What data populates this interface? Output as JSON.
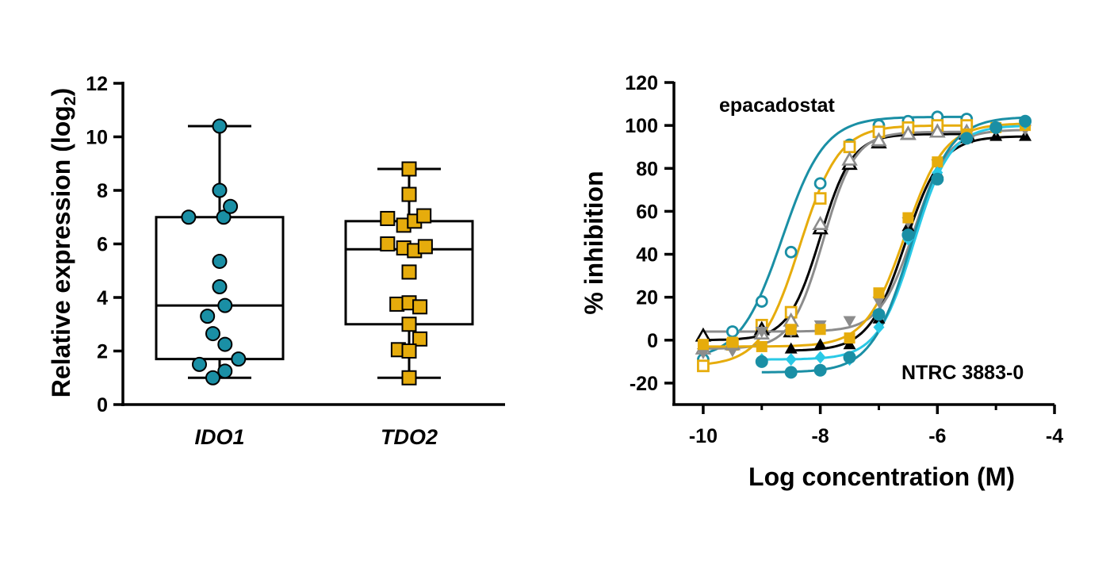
{
  "colors": {
    "teal": "#1a8fa5",
    "gold": "#e6ac0c",
    "black": "#000000",
    "gray": "#8c8c8c",
    "cyan": "#29c9e6"
  },
  "chart_data": [
    {
      "type": "box",
      "ylabel": "Relative expression (log",
      "ylabel_sub": "2",
      "ylabel_close": ")",
      "ylim": [
        0,
        12
      ],
      "yticks": [
        "0",
        "2",
        "4",
        "6",
        "8",
        "10",
        "12"
      ],
      "categories": [
        "IDO1",
        "TDO2"
      ],
      "grid": false,
      "boxes": [
        {
          "name": "IDO1",
          "marker": "circle",
          "color": "teal",
          "min": 1.0,
          "q1": 1.7,
          "median": 3.7,
          "q3": 7.0,
          "max": 10.4,
          "points": [
            10.4,
            8.0,
            7.0,
            7.0,
            7.4,
            5.35,
            4.4,
            3.7,
            3.3,
            2.65,
            2.25,
            1.7,
            1.5,
            1.25,
            1.0
          ]
        },
        {
          "name": "TDO2",
          "marker": "square",
          "color": "gold",
          "min": 1.0,
          "q1": 3.0,
          "median": 5.8,
          "q3": 6.85,
          "max": 8.8,
          "points": [
            8.8,
            7.85,
            6.95,
            6.7,
            6.85,
            7.05,
            6.0,
            5.85,
            5.75,
            5.9,
            4.95,
            3.75,
            3.8,
            3.65,
            3.0,
            2.45,
            2.05,
            2.0,
            1.0
          ]
        }
      ]
    },
    {
      "type": "line",
      "xlabel": "Log concentration (M)",
      "ylabel": "% inhibition",
      "xlim": [
        -10.5,
        -4
      ],
      "ylim": [
        -30,
        120
      ],
      "xticks": [
        "-10",
        "-8",
        "-6",
        "-4"
      ],
      "yticks": [
        "-20",
        "0",
        "20",
        "40",
        "60",
        "80",
        "100",
        "120"
      ],
      "grid": false,
      "annotations": [
        "epacadostat",
        "NTRC 3883-0"
      ],
      "series": [
        {
          "group": "epacadostat",
          "color": "teal",
          "marker": "circle-open",
          "x0": -10,
          "x1": -5.5,
          "bottom": -9,
          "top": 104,
          "logIC50": -8.65,
          "hill": 1.2,
          "x": [
            -10,
            -9.5,
            -9,
            -8.5,
            -8,
            -7.5,
            -7,
            -6.5,
            -6,
            -5.5
          ],
          "y": [
            -9,
            4,
            18,
            41,
            73,
            91,
            100,
            102,
            104,
            103
          ]
        },
        {
          "group": "epacadostat",
          "color": "gold",
          "marker": "square-open",
          "x0": -10,
          "x1": -5.5,
          "bottom": -12,
          "top": 100,
          "logIC50": -8.35,
          "hill": 1.3,
          "x": [
            -10,
            -9.5,
            -9,
            -8.5,
            -8,
            -7.5,
            -7,
            -6.5,
            -6,
            -5.5
          ],
          "y": [
            -12,
            -2,
            7,
            13,
            66,
            90,
            97,
            99,
            100,
            100
          ]
        },
        {
          "group": "epacadostat",
          "color": "black",
          "marker": "triangle-open",
          "x0": -10,
          "x1": -5.5,
          "bottom": 0,
          "top": 96,
          "logIC50": -8.0,
          "hill": 1.6,
          "x": [
            -10,
            -9,
            -8.5,
            -8,
            -7.5,
            -7,
            -6.5,
            -6,
            -5.5
          ],
          "y": [
            2,
            5,
            4,
            52,
            82,
            92,
            96,
            97,
            96
          ]
        },
        {
          "group": "epacadostat",
          "color": "gray",
          "marker": "triangle-open",
          "x0": -10,
          "x1": -5.5,
          "bottom": -4,
          "top": 97,
          "logIC50": -7.95,
          "hill": 1.6,
          "x": [
            -10,
            -9.5,
            -9,
            -8.5,
            -8,
            -7.5,
            -7,
            -6.5,
            -6,
            -5.5
          ],
          "y": [
            -4,
            -2,
            3,
            9,
            54,
            84,
            93,
            96,
            97,
            97
          ]
        },
        {
          "group": "NTRC 3883-0",
          "color": "black",
          "marker": "triangle",
          "x0": -8.5,
          "x1": -4.5,
          "bottom": -5,
          "top": 95,
          "logIC50": -6.55,
          "hill": 1.4,
          "x": [
            -8.5,
            -8,
            -7.5,
            -7,
            -6.5,
            -6,
            -5.5,
            -5,
            -4.5
          ],
          "y": [
            -4,
            -2,
            -2,
            10,
            53,
            78,
            94,
            95,
            95
          ]
        },
        {
          "group": "NTRC 3883-0",
          "color": "gray",
          "marker": "triangle-down",
          "x0": -10,
          "x1": -4.5,
          "bottom": 4,
          "top": 98,
          "logIC50": -6.4,
          "hill": 1.5,
          "x": [
            -10,
            -9.5,
            -9,
            -8.5,
            -8,
            -7.5,
            -7,
            -6.5,
            -6,
            -5.5,
            -5,
            -4.5
          ],
          "y": [
            -6,
            -5,
            4,
            4,
            7,
            9,
            18,
            55,
            82,
            95,
            98,
            98
          ]
        },
        {
          "group": "NTRC 3883-0",
          "color": "gold",
          "marker": "square",
          "x0": -10,
          "x1": -4.5,
          "bottom": -3,
          "top": 101,
          "logIC50": -6.55,
          "hill": 1.3,
          "x": [
            -10,
            -9.5,
            -9,
            -8.5,
            -8,
            -7.5,
            -7,
            -6.5,
            -6,
            -5.5,
            -5,
            -4.5
          ],
          "y": [
            -2,
            -1,
            -3,
            5,
            5,
            1,
            22,
            57,
            83,
            96,
            99,
            100
          ]
        },
        {
          "group": "NTRC 3883-0",
          "color": "cyan",
          "marker": "diamond",
          "x0": -9,
          "x1": -4.5,
          "bottom": -9,
          "top": 100,
          "logIC50": -6.4,
          "hill": 1.4,
          "x": [
            -9,
            -8.5,
            -8,
            -7.5,
            -7,
            -6.5,
            -6,
            -5.5,
            -5,
            -4.5
          ],
          "y": [
            -9,
            -9,
            -8,
            -9,
            6,
            47,
            78,
            94,
            99,
            101
          ]
        },
        {
          "group": "NTRC 3883-0",
          "color": "teal",
          "marker": "circle",
          "x0": -9,
          "x1": -4.5,
          "bottom": -15,
          "top": 104,
          "logIC50": -6.45,
          "hill": 1.3,
          "x": [
            -9,
            -8.5,
            -8,
            -7.5,
            -7,
            -6.5,
            -6,
            -5.5,
            -5,
            -4.5
          ],
          "y": [
            -10,
            -15,
            -14,
            -8,
            12,
            49,
            75,
            94,
            99,
            102
          ]
        }
      ]
    }
  ]
}
